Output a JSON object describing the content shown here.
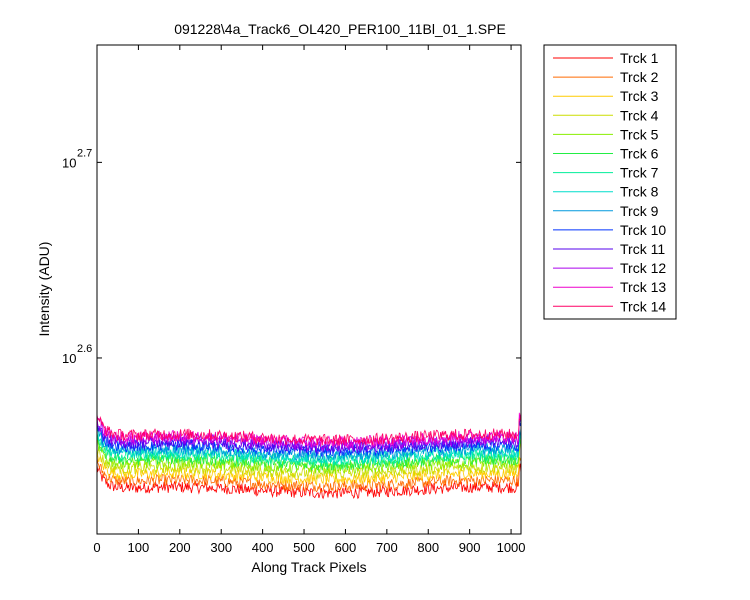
{
  "chart_data": {
    "type": "line",
    "title": "091228\\4a_Track6_OL420_PER100_11Bl_01_1.SPE",
    "xlabel": "Along Track Pixels",
    "ylabel": "Intensity (ADU)",
    "xlim": [
      0,
      1024
    ],
    "ylim_log10": [
      2.51,
      2.76
    ],
    "y_scale": "log",
    "x_ticks": [
      "0",
      "100",
      "200",
      "300",
      "400",
      "500",
      "600",
      "700",
      "800",
      "900",
      "1000"
    ],
    "y_ticks": [
      {
        "base": "10",
        "exponent": "2.6",
        "log10_value": 2.6
      },
      {
        "base": "10",
        "exponent": "2.7",
        "log10_value": 2.7
      }
    ],
    "grid": false,
    "legend_position": "outside-right",
    "series": [
      {
        "name": "Trck 1",
        "color": "#ff0000",
        "level_log10": 2.5325
      },
      {
        "name": "Trck 2",
        "color": "#ff6a00",
        "level_log10": 2.536
      },
      {
        "name": "Trck 3",
        "color": "#ffcc00",
        "level_log10": 2.5395
      },
      {
        "name": "Trck 4",
        "color": "#ccdd00",
        "level_log10": 2.5425
      },
      {
        "name": "Trck 5",
        "color": "#88ee00",
        "level_log10": 2.545
      },
      {
        "name": "Trck 6",
        "color": "#22ee44",
        "level_log10": 2.547
      },
      {
        "name": "Trck 7",
        "color": "#00ee99",
        "level_log10": 2.549
      },
      {
        "name": "Trck 8",
        "color": "#00ddcc",
        "level_log10": 2.5505
      },
      {
        "name": "Trck 9",
        "color": "#0099dd",
        "level_log10": 2.552
      },
      {
        "name": "Trck 10",
        "color": "#0033ff",
        "level_log10": 2.554
      },
      {
        "name": "Trck 11",
        "color": "#5500ee",
        "level_log10": 2.5555
      },
      {
        "name": "Trck 12",
        "color": "#aa00ee",
        "level_log10": 2.557
      },
      {
        "name": "Trck 13",
        "color": "#ee00cc",
        "level_log10": 2.5585
      },
      {
        "name": "Trck 14",
        "color": "#ff0066",
        "level_log10": 2.5595
      }
    ]
  }
}
